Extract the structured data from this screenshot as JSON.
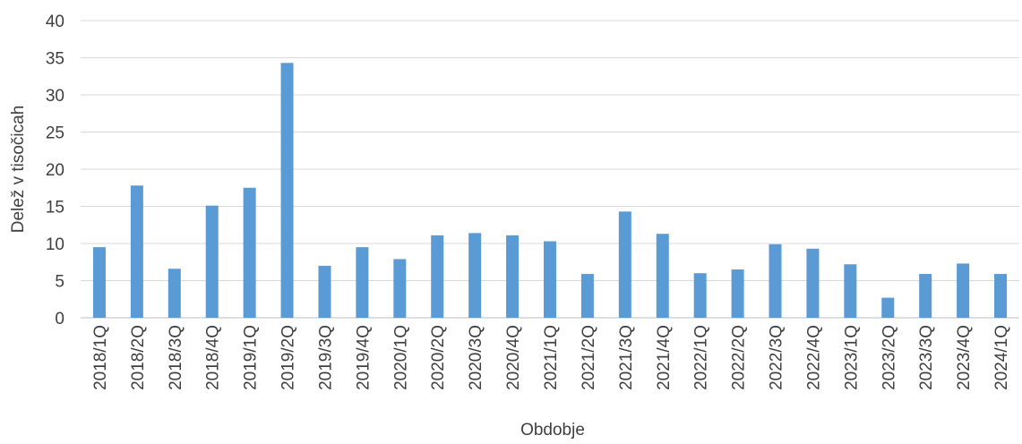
{
  "chart_data": {
    "type": "bar",
    "title": "",
    "xlabel": "Obdobje",
    "ylabel": "Delež v tisočicah",
    "ylim": [
      0,
      40
    ],
    "yticks": [
      0,
      5,
      10,
      15,
      20,
      25,
      30,
      35,
      40
    ],
    "grid": true,
    "legend": "none",
    "bar_color": "#5B9BD5",
    "categories": [
      "2018/1Q",
      "2018/2Q",
      "2018/3Q",
      "2018/4Q",
      "2019/1Q",
      "2019/2Q",
      "2019/3Q",
      "2019/4Q",
      "2020/1Q",
      "2020/2Q",
      "2020/3Q",
      "2020/4Q",
      "2021/1Q",
      "2021/2Q",
      "2021/3Q",
      "2021/4Q",
      "2022/1Q",
      "2022/2Q",
      "2022/3Q",
      "2022/4Q",
      "2023/1Q",
      "2023/2Q",
      "2023/3Q",
      "2023/4Q",
      "2024/1Q"
    ],
    "values": [
      9.5,
      17.8,
      6.6,
      15.1,
      17.5,
      34.3,
      7.0,
      9.5,
      7.9,
      11.1,
      11.4,
      11.1,
      10.3,
      5.9,
      14.3,
      11.3,
      6.0,
      6.5,
      9.9,
      9.3,
      7.2,
      2.7,
      5.9,
      7.3,
      5.9
    ]
  }
}
